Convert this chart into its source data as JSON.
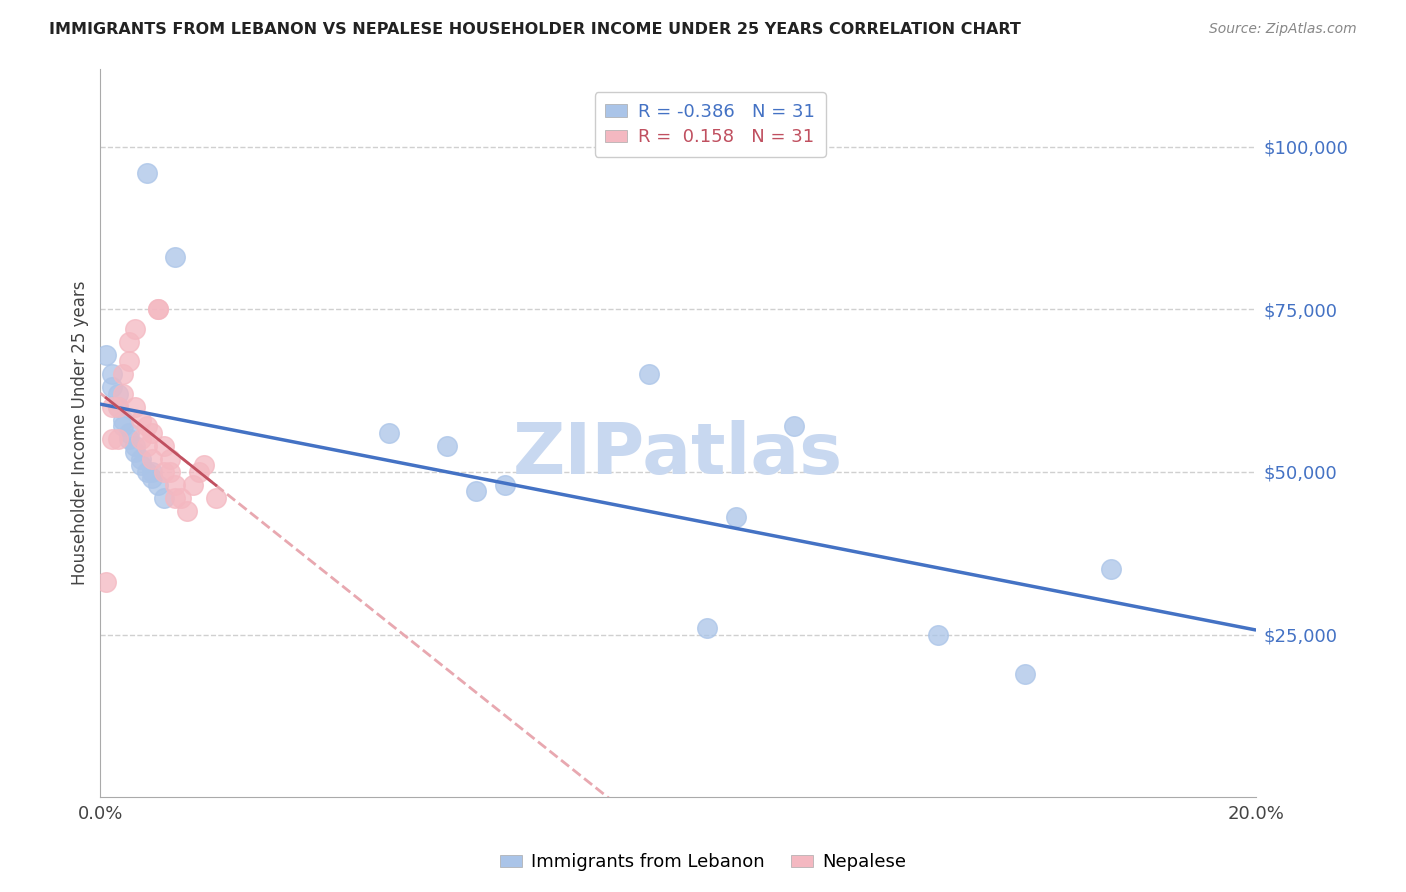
{
  "title": "IMMIGRANTS FROM LEBANON VS NEPALESE HOUSEHOLDER INCOME UNDER 25 YEARS CORRELATION CHART",
  "source": "Source: ZipAtlas.com",
  "ylabel": "Householder Income Under 25 years",
  "xlim": [
    0.0,
    0.2
  ],
  "ylim": [
    0,
    112000
  ],
  "xtick_positions": [
    0.0,
    0.05,
    0.1,
    0.15,
    0.2
  ],
  "xtick_labels": [
    "0.0%",
    "",
    "",
    "",
    "20.0%"
  ],
  "ytick_positions": [
    25000,
    50000,
    75000,
    100000
  ],
  "ytick_labels": [
    "$25,000",
    "$50,000",
    "$75,000",
    "$100,000"
  ],
  "grid_color": "#d0d0d0",
  "background_color": "#ffffff",
  "lebanon_color": "#aac4e8",
  "nepalese_color": "#f4b8c1",
  "lebanon_line_color": "#4472c4",
  "nepalese_solid_color": "#c05060",
  "nepalese_dashed_color": "#e8a8b0",
  "axis_color": "#4472c4",
  "R_lebanon": -0.386,
  "R_nepalese": 0.158,
  "N_lebanon": 31,
  "N_nepalese": 31,
  "lebanon_scatter_x": [
    0.008,
    0.013,
    0.001,
    0.002,
    0.002,
    0.003,
    0.003,
    0.004,
    0.004,
    0.005,
    0.005,
    0.006,
    0.006,
    0.007,
    0.007,
    0.008,
    0.009,
    0.009,
    0.01,
    0.011,
    0.05,
    0.06,
    0.065,
    0.07,
    0.095,
    0.105,
    0.11,
    0.12,
    0.145,
    0.16,
    0.175
  ],
  "lebanon_scatter_y": [
    96000,
    83000,
    68000,
    65000,
    63000,
    62000,
    60000,
    58000,
    57000,
    56000,
    55000,
    54000,
    53000,
    52000,
    51000,
    50000,
    50000,
    49000,
    48000,
    46000,
    56000,
    54000,
    47000,
    48000,
    65000,
    26000,
    43000,
    57000,
    25000,
    19000,
    35000
  ],
  "nepalese_scatter_x": [
    0.001,
    0.002,
    0.002,
    0.003,
    0.003,
    0.004,
    0.004,
    0.005,
    0.005,
    0.006,
    0.006,
    0.007,
    0.007,
    0.008,
    0.008,
    0.009,
    0.009,
    0.01,
    0.01,
    0.011,
    0.011,
    0.012,
    0.012,
    0.013,
    0.013,
    0.014,
    0.015,
    0.016,
    0.017,
    0.018,
    0.02
  ],
  "nepalese_scatter_y": [
    33000,
    55000,
    60000,
    55000,
    60000,
    62000,
    65000,
    67000,
    70000,
    72000,
    60000,
    58000,
    55000,
    57000,
    54000,
    56000,
    52000,
    75000,
    75000,
    50000,
    54000,
    52000,
    50000,
    48000,
    46000,
    46000,
    44000,
    48000,
    50000,
    51000,
    46000
  ],
  "watermark": "ZIPatlas",
  "watermark_color": "#c8d8f0",
  "watermark_fontsize": 52
}
